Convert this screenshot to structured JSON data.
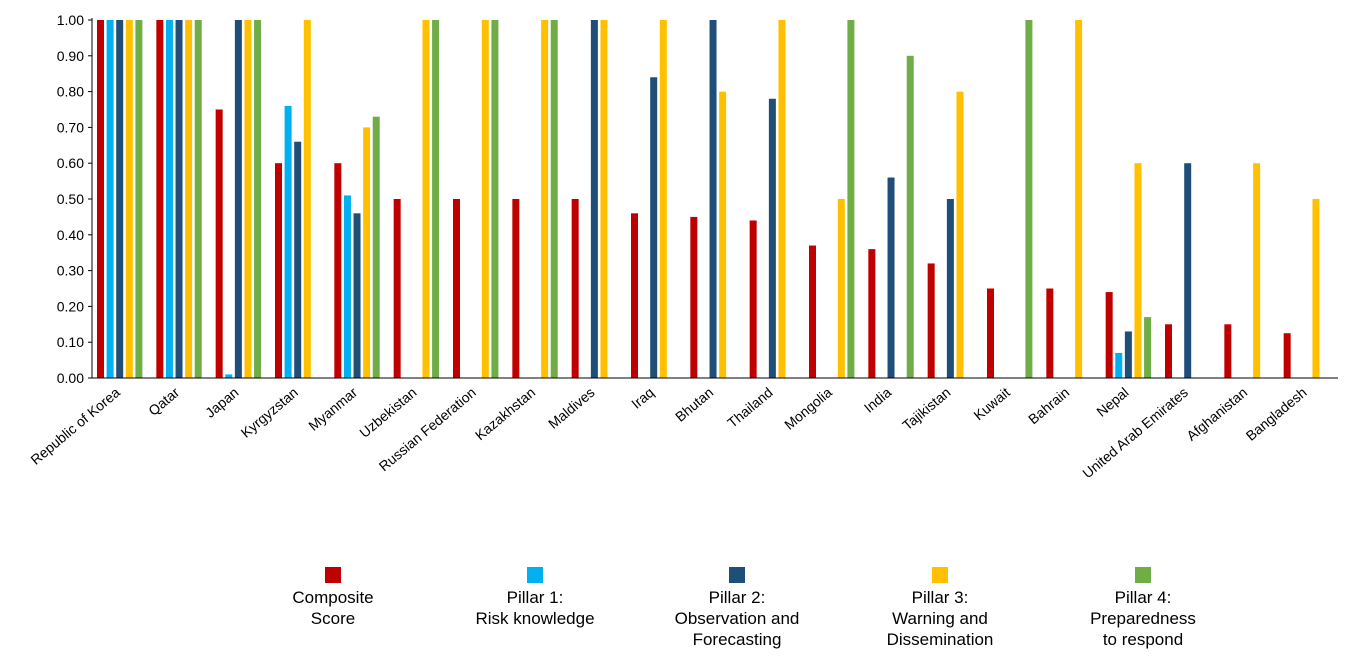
{
  "chart_data": {
    "type": "bar",
    "categories": [
      "Republic of Korea",
      "Qatar",
      "Japan",
      "Kyrgyzstan",
      "Myanmar",
      "Uzbekistan",
      "Russian Federation",
      "Kazakhstan",
      "Maldives",
      "Iraq",
      "Bhutan",
      "Thailand",
      "Mongolia",
      "India",
      "Tajikistan",
      "Kuwait",
      "Bahrain",
      "Nepal",
      "United Arab Emirates",
      "Afghanistan",
      "Bangladesh"
    ],
    "series": [
      {
        "name": "Composite\nScore",
        "color": "#c00000",
        "values": [
          1,
          1,
          0.75,
          0.6,
          0.6,
          0.5,
          0.5,
          0.5,
          0.5,
          0.46,
          0.45,
          0.44,
          0.37,
          0.36,
          0.32,
          0.25,
          0.25,
          0.24,
          0.15,
          0.15,
          0.125
        ]
      },
      {
        "name": "Pillar 1:\nRisk knowledge",
        "color": "#00b0f0",
        "values": [
          1,
          1,
          0.01,
          0.76,
          0.51,
          0,
          0,
          0,
          0,
          0,
          0,
          0,
          0,
          0,
          0,
          0,
          0,
          0.07,
          0,
          0,
          0
        ]
      },
      {
        "name": "Pillar 2:\nObservation and\nForecasting",
        "color": "#1f4e79",
        "values": [
          1,
          1,
          1,
          0.66,
          0.46,
          0,
          0,
          0,
          1,
          0.84,
          1,
          0.78,
          0,
          0.56,
          0.5,
          0,
          0,
          0.13,
          0.6,
          0,
          0
        ]
      },
      {
        "name": "Pillar 3:\nWarning and\nDissemination",
        "color": "#ffc000",
        "values": [
          1,
          1,
          1,
          1,
          0.7,
          1,
          1,
          1,
          1,
          1,
          0.8,
          1,
          0.5,
          0,
          0.8,
          0,
          1,
          0.6,
          0,
          0.6,
          0.5
        ]
      },
      {
        "name": "Pillar 4:\nPreparedness\nto respond",
        "color": "#70ad47",
        "values": [
          1,
          1,
          1,
          0,
          0.73,
          1,
          1,
          1,
          0,
          0,
          0,
          0,
          1,
          0.9,
          0,
          1,
          0,
          0.17,
          0,
          0,
          0
        ]
      }
    ],
    "ylim": [
      0,
      1
    ],
    "yticks": [
      {
        "value": 0,
        "label": "0.00"
      },
      {
        "value": 0.1,
        "label": "0.10"
      },
      {
        "value": 0.2,
        "label": "0.20"
      },
      {
        "value": 0.3,
        "label": "0.30"
      },
      {
        "value": 0.4,
        "label": "0.40"
      },
      {
        "value": 0.5,
        "label": "0.50"
      },
      {
        "value": 0.6,
        "label": "0.60"
      },
      {
        "value": 0.7,
        "label": "0.70"
      },
      {
        "value": 0.8,
        "label": "0.80"
      },
      {
        "value": 0.9,
        "label": "0.90"
      },
      {
        "value": 1,
        "label": "1.00"
      }
    ],
    "grid": false
  }
}
